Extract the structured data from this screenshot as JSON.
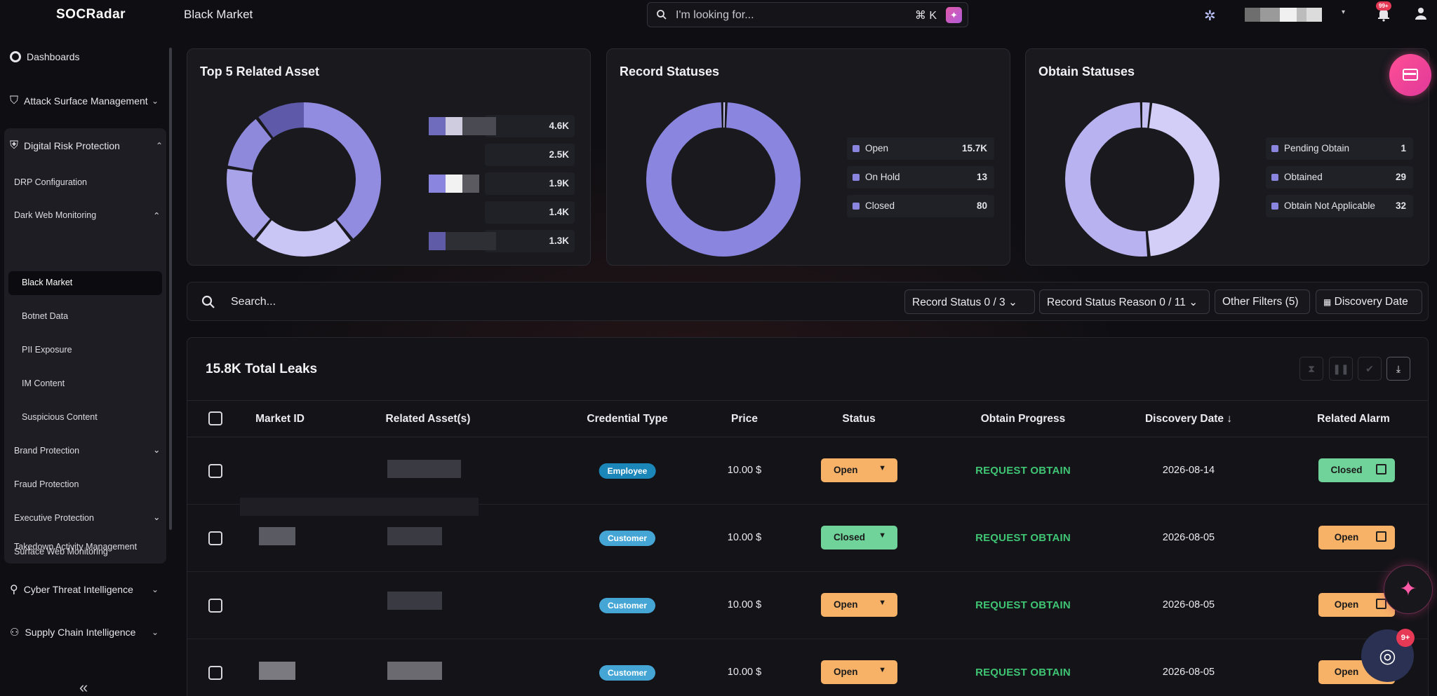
{
  "app": {
    "logo": "SOCRadar",
    "page_title": "Black Market"
  },
  "top_search": {
    "placeholder": "I'm looking for...",
    "shortcut": "⌘ K"
  },
  "notifications": {
    "badge": "99+"
  },
  "sidebar": {
    "items": [
      {
        "label": "Dashboards"
      },
      {
        "label": "Attack Surface Management"
      },
      {
        "label": "Digital Risk Protection"
      },
      {
        "label": "Cyber Threat Intelligence"
      },
      {
        "label": "Supply Chain Intelligence"
      }
    ],
    "drp": {
      "config": "DRP Configuration",
      "dark_web": "Dark Web Monitoring",
      "dark_web_sub": [
        "Black Market",
        "Botnet Data",
        "PII Exposure",
        "IM Content",
        "Suspicious Content"
      ],
      "brand": "Brand Protection",
      "fraud": "Fraud Protection",
      "executive": "Executive Protection",
      "surface": "Surface Web Monitoring",
      "takedown": "Takedown Activity Management"
    },
    "collapse_icon": "«"
  },
  "cards": {
    "assets": {
      "title": "Top 5 Related Asset",
      "values": [
        "4.6K",
        "2.5K",
        "1.9K",
        "1.4K",
        "1.3K"
      ]
    },
    "records": {
      "title": "Record Statuses",
      "legend": [
        {
          "label": "Open",
          "value": "15.7K"
        },
        {
          "label": "On Hold",
          "value": "13"
        },
        {
          "label": "Closed",
          "value": "80"
        }
      ]
    },
    "obtain": {
      "title": "Obtain Statuses",
      "legend": [
        {
          "label": "Pending Obtain",
          "value": "1"
        },
        {
          "label": "Obtained",
          "value": "29"
        },
        {
          "label": "Obtain Not Applicable",
          "value": "32"
        }
      ]
    }
  },
  "colors": {
    "accent": "#8a85de",
    "light": "#c4c0f3",
    "dark": "#5a56a8",
    "green": "#3fc474",
    "orange": "#f7b267",
    "mint": "#6fd39a"
  },
  "filters": {
    "search_placeholder": "Search...",
    "record_status": "Record Status  0 / 3",
    "record_status_reason": "Record Status Reason  0 / 11",
    "other_filters": "Other Filters  (5)",
    "discovery_date": "Discovery Date"
  },
  "table": {
    "total": "15.8K Total Leaks",
    "headers": [
      "Market ID",
      "Related Asset(s)",
      "Credential Type",
      "Price",
      "Status",
      "Obtain Progress",
      "Discovery Date ↓",
      "Related Alarm"
    ],
    "rows": [
      {
        "credential": "Employee",
        "price": "10.00 $",
        "status": "Open",
        "obtain": "REQUEST OBTAIN",
        "date": "2026-08-14",
        "alarm": "Closed"
      },
      {
        "credential": "Customer",
        "price": "10.00 $",
        "status": "Closed",
        "obtain": "REQUEST OBTAIN",
        "date": "2026-08-05",
        "alarm": "Open"
      },
      {
        "credential": "Customer",
        "price": "10.00 $",
        "status": "Open",
        "obtain": "REQUEST OBTAIN",
        "date": "2026-08-05",
        "alarm": "Open"
      },
      {
        "credential": "Customer",
        "price": "10.00 $",
        "status": "Open",
        "obtain": "REQUEST OBTAIN",
        "date": "2026-08-05",
        "alarm": "Open"
      }
    ]
  },
  "chat_badge": "9+"
}
